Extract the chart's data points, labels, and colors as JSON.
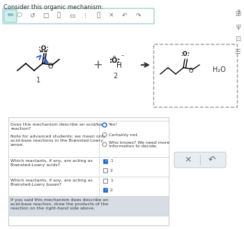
{
  "title": "Consider this organic mechanism:",
  "bg_color": "#ffffff",
  "toolbar_bg": "#ffffff",
  "toolbar_border": "#a0d0d0",
  "toolbar_active_bg": "#d0eeee",
  "dashed_box_border": "#aaaaaa",
  "table_border": "#cccccc",
  "table_header_bg": "#e8edf2",
  "table_row1_bg": "#ffffff",
  "table_row2_bg": "#ffffff",
  "table_last_bg": "#d8dde4",
  "btn_bg": "#e8edf2",
  "btn_border": "#cccccc",
  "radio_checked_color": "#2266cc",
  "checkbox_checked_color": "#2266cc",
  "q1_label": "Does this mechanism describe an acid/base\nreaction?\n\nNote for advanced students: we mean only\nacid-base reactions in the Brønsted-Lowry\nsense.",
  "q1_options": [
    "Yes!",
    "Certainly not.",
    "Who knows? We need more\ninformation to decide."
  ],
  "q1_checked": 0,
  "q2_label": "Which reactants, if any, are acting as\nBrønsted-Lowry acids?",
  "q2_options": [
    "1",
    "2"
  ],
  "q2_checked": 0,
  "q3_label": "Which reactants, if any, are acting as\nBrønsted-Lowry bases?",
  "q3_options": [
    "1",
    "2"
  ],
  "q3_checked": 1,
  "q4_label": "If you said this mechanism does describe an\nacid-base reaction, draw the products of the\nreaction on the right-hand side above."
}
